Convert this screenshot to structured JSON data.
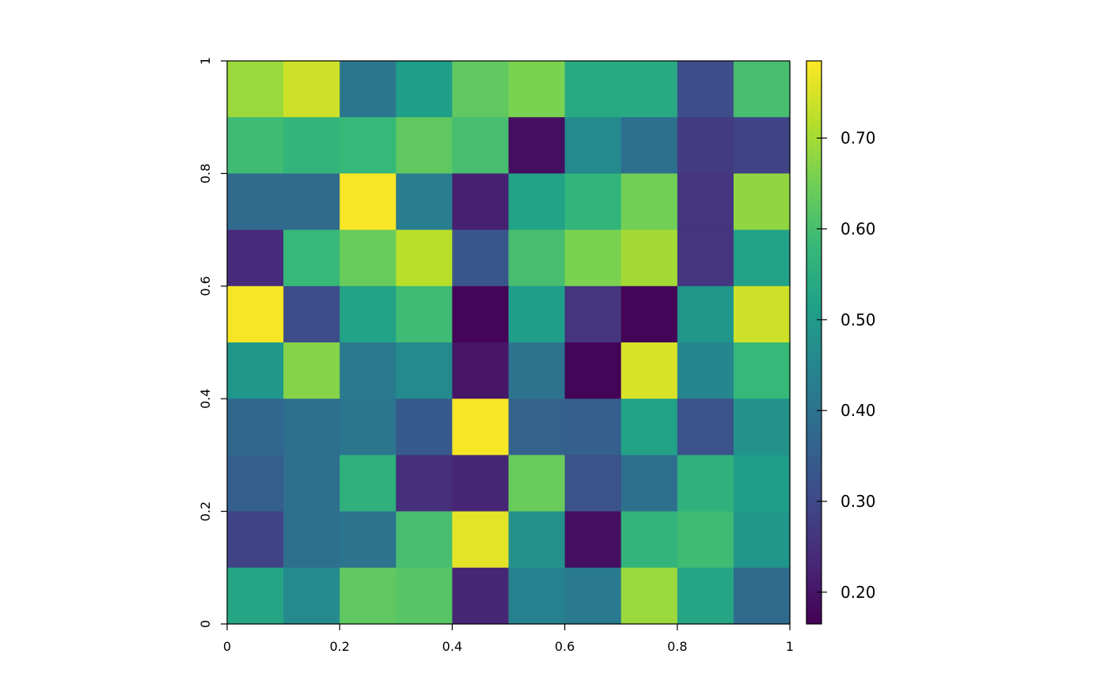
{
  "chart_data": {
    "type": "heatmap",
    "title": "",
    "xlabel": "",
    "ylabel": "",
    "xlim": [
      0,
      1
    ],
    "ylim": [
      0,
      1
    ],
    "x_ticks": [
      0,
      0.2,
      0.4,
      0.6,
      0.8,
      1
    ],
    "x_tick_labels": [
      "0",
      "0.2",
      "0.4",
      "0.6",
      "0.8",
      "1"
    ],
    "y_ticks": [
      0,
      0.2,
      0.4,
      0.6,
      0.8,
      1
    ],
    "y_tick_labels": [
      "0",
      "0.2",
      "0.4",
      "0.6",
      "0.8",
      "1"
    ],
    "colorbar": {
      "min": 0.165,
      "max": 0.785,
      "ticks": [
        0.2,
        0.3,
        0.4,
        0.5,
        0.6,
        0.7
      ],
      "tick_labels": [
        "0.20",
        "0.30",
        "0.40",
        "0.50",
        "0.60",
        "0.70"
      ],
      "colormap": "viridis"
    },
    "colormap_stops": [
      "#440154",
      "#482878",
      "#3e4a89",
      "#31688e",
      "#26828e",
      "#1f9e89",
      "#35b779",
      "#6ece58",
      "#b5de2b",
      "#fde725"
    ],
    "grid_cols": 10,
    "grid_rows": 10,
    "row_order": "top-to-bottom",
    "values": [
      [
        0.69,
        0.74,
        0.41,
        0.51,
        0.63,
        0.66,
        0.54,
        0.54,
        0.31,
        0.6
      ],
      [
        0.59,
        0.57,
        0.58,
        0.63,
        0.6,
        0.19,
        0.46,
        0.39,
        0.27,
        0.29
      ],
      [
        0.38,
        0.38,
        0.78,
        0.43,
        0.22,
        0.52,
        0.57,
        0.65,
        0.26,
        0.68
      ],
      [
        0.24,
        0.58,
        0.64,
        0.72,
        0.33,
        0.6,
        0.66,
        0.7,
        0.26,
        0.52
      ],
      [
        0.78,
        0.31,
        0.52,
        0.59,
        0.17,
        0.51,
        0.26,
        0.17,
        0.49,
        0.74
      ],
      [
        0.49,
        0.67,
        0.42,
        0.46,
        0.2,
        0.4,
        0.17,
        0.75,
        0.45,
        0.58
      ],
      [
        0.37,
        0.39,
        0.41,
        0.34,
        0.78,
        0.36,
        0.35,
        0.52,
        0.32,
        0.48
      ],
      [
        0.35,
        0.39,
        0.56,
        0.25,
        0.23,
        0.64,
        0.32,
        0.39,
        0.56,
        0.51
      ],
      [
        0.29,
        0.39,
        0.4,
        0.6,
        0.76,
        0.48,
        0.19,
        0.57,
        0.59,
        0.49
      ],
      [
        0.53,
        0.46,
        0.63,
        0.62,
        0.23,
        0.44,
        0.42,
        0.69,
        0.53,
        0.38
      ]
    ]
  }
}
